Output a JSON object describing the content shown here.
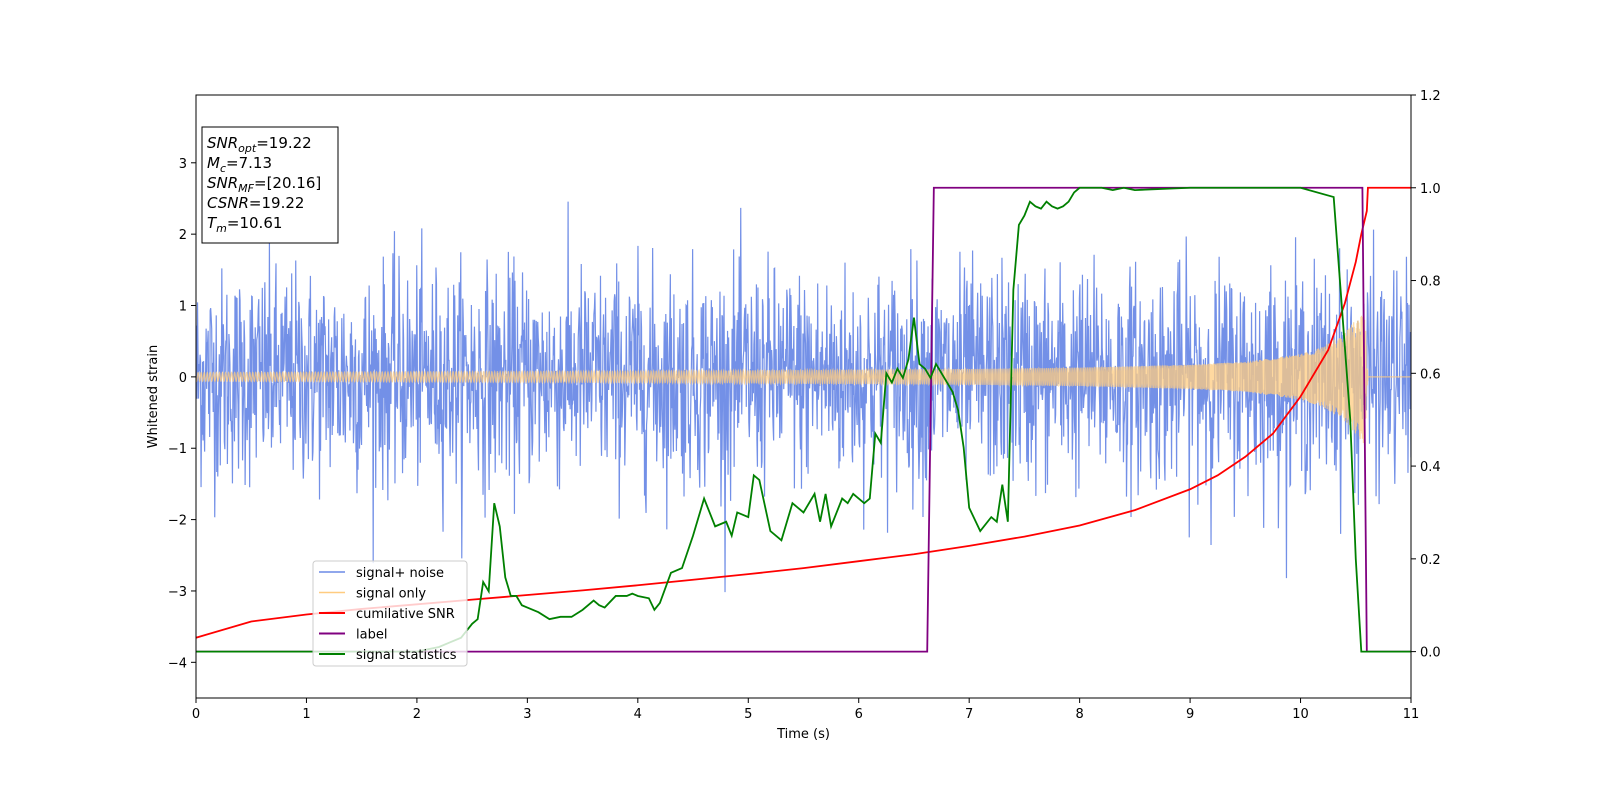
{
  "chart_data": {
    "type": "line",
    "xlabel": "Time (s)",
    "ylabel": "Whitened strain",
    "xlim": [
      0,
      11
    ],
    "ylim_left": [
      -4.5,
      3.95
    ],
    "ylim_right": [
      -0.1,
      1.2
    ],
    "x_ticks": [
      0,
      1,
      2,
      3,
      4,
      5,
      6,
      7,
      8,
      9,
      10,
      11
    ],
    "y_left_ticks": [
      -4,
      -3,
      -2,
      -1,
      0,
      1,
      2,
      3
    ],
    "y_left_tick_labels": [
      "−4",
      "−3",
      "−2",
      "−1",
      "0",
      "1",
      "2",
      "3"
    ],
    "y_right_ticks": [
      0.0,
      0.2,
      0.4,
      0.6,
      0.8,
      1.0,
      1.2
    ],
    "y_right_tick_labels": [
      "0.0",
      "0.2",
      "0.4",
      "0.6",
      "0.8",
      "1.0",
      "1.2"
    ],
    "legend_position": "lower-left",
    "colors": {
      "noise": "#6b8ae6",
      "signal": "#ffcc80",
      "csnr": "#ff0000",
      "label": "#800080",
      "stats": "#008000"
    },
    "series": [
      {
        "name": "signal+ noise",
        "axis": "left",
        "description_hidden": true
      },
      {
        "name": "signal only",
        "axis": "left"
      },
      {
        "name": "cumilative SNR",
        "axis": "right",
        "x": [
          0,
          0.5,
          1,
          1.5,
          2,
          2.5,
          3,
          3.5,
          4,
          4.5,
          5,
          5.5,
          6,
          6.5,
          7,
          7.5,
          8,
          8.5,
          9,
          9.25,
          9.5,
          9.75,
          10,
          10.25,
          10.4,
          10.5,
          10.55,
          10.6,
          10.61,
          11
        ],
        "y": [
          0.03,
          0.065,
          0.08,
          0.092,
          0.102,
          0.112,
          0.122,
          0.132,
          0.143,
          0.155,
          0.167,
          0.18,
          0.195,
          0.21,
          0.228,
          0.248,
          0.272,
          0.305,
          0.35,
          0.38,
          0.42,
          0.47,
          0.55,
          0.65,
          0.75,
          0.84,
          0.9,
          0.95,
          1.0,
          1.0
        ]
      },
      {
        "name": "label",
        "axis": "right",
        "x": [
          0,
          6.62,
          6.68,
          10.56,
          10.6,
          11
        ],
        "y": [
          0,
          0,
          1,
          1,
          0,
          0
        ]
      },
      {
        "name": "signal statistics",
        "axis": "right",
        "x": [
          0,
          0.5,
          1,
          1.5,
          2,
          2.1,
          2.2,
          2.3,
          2.4,
          2.5,
          2.55,
          2.6,
          2.65,
          2.7,
          2.75,
          2.8,
          2.85,
          2.9,
          2.95,
          3.0,
          3.1,
          3.2,
          3.3,
          3.4,
          3.5,
          3.6,
          3.65,
          3.7,
          3.8,
          3.9,
          3.95,
          4.0,
          4.1,
          4.15,
          4.2,
          4.3,
          4.4,
          4.5,
          4.6,
          4.65,
          4.7,
          4.8,
          4.85,
          4.9,
          5.0,
          5.05,
          5.1,
          5.2,
          5.3,
          5.4,
          5.5,
          5.6,
          5.65,
          5.7,
          5.75,
          5.8,
          5.85,
          5.9,
          5.95,
          6.0,
          6.05,
          6.1,
          6.15,
          6.2,
          6.25,
          6.3,
          6.35,
          6.4,
          6.45,
          6.5,
          6.55,
          6.6,
          6.65,
          6.7,
          6.8,
          6.85,
          6.9,
          6.95,
          7.0,
          7.1,
          7.2,
          7.25,
          7.3,
          7.35,
          7.4,
          7.45,
          7.5,
          7.55,
          7.6,
          7.65,
          7.7,
          7.75,
          7.8,
          7.85,
          7.9,
          7.95,
          8.0,
          8.1,
          8.2,
          8.3,
          8.4,
          8.5,
          9.0,
          9.5,
          10.0,
          10.3,
          10.45,
          10.5,
          10.55,
          10.6,
          10.65,
          10.7,
          11.0
        ],
        "y": [
          0,
          0.0,
          0.0,
          0.0,
          0.0,
          0.005,
          0.01,
          0.02,
          0.03,
          0.06,
          0.07,
          0.15,
          0.13,
          0.32,
          0.27,
          0.16,
          0.12,
          0.12,
          0.1,
          0.095,
          0.085,
          0.07,
          0.075,
          0.075,
          0.09,
          0.11,
          0.1,
          0.095,
          0.12,
          0.12,
          0.125,
          0.12,
          0.115,
          0.09,
          0.105,
          0.17,
          0.18,
          0.25,
          0.33,
          0.3,
          0.27,
          0.28,
          0.25,
          0.3,
          0.29,
          0.38,
          0.37,
          0.26,
          0.24,
          0.32,
          0.3,
          0.34,
          0.28,
          0.34,
          0.27,
          0.3,
          0.33,
          0.32,
          0.34,
          0.33,
          0.32,
          0.33,
          0.47,
          0.45,
          0.6,
          0.58,
          0.61,
          0.59,
          0.63,
          0.72,
          0.62,
          0.61,
          0.59,
          0.62,
          0.58,
          0.56,
          0.52,
          0.44,
          0.31,
          0.26,
          0.29,
          0.28,
          0.36,
          0.28,
          0.78,
          0.92,
          0.94,
          0.97,
          0.96,
          0.955,
          0.97,
          0.96,
          0.955,
          0.96,
          0.97,
          0.99,
          1.0,
          1.0,
          1.0,
          0.995,
          1.0,
          0.995,
          1.0,
          1.0,
          1.0,
          0.98,
          0.5,
          0.2,
          0.0,
          0.0,
          0.0,
          0.0,
          0.0
        ]
      }
    ],
    "signal_only_envelope": {
      "x": [
        0,
        1,
        2,
        3,
        4,
        5,
        6,
        7,
        8,
        9,
        9.5,
        10,
        10.2,
        10.4,
        10.5,
        10.58,
        10.61,
        11
      ],
      "amplitude": [
        0.06,
        0.065,
        0.07,
        0.075,
        0.08,
        0.09,
        0.1,
        0.11,
        0.13,
        0.17,
        0.21,
        0.32,
        0.42,
        0.62,
        0.8,
        0.95,
        0.0,
        0.0
      ]
    },
    "noise_sigma": 0.75,
    "info_box": {
      "lines": [
        {
          "base": "SNR",
          "sub": "opt",
          "value": "=19.22"
        },
        {
          "base": "M",
          "sub": "c",
          "value": "=7.13"
        },
        {
          "base": "SNR",
          "sub": "MF",
          "value": "=[20.16]"
        },
        {
          "base": "CSNR",
          "sub": "",
          "value": "=19.22"
        },
        {
          "base": "T",
          "sub": "m",
          "value": "=10.61"
        }
      ]
    }
  }
}
